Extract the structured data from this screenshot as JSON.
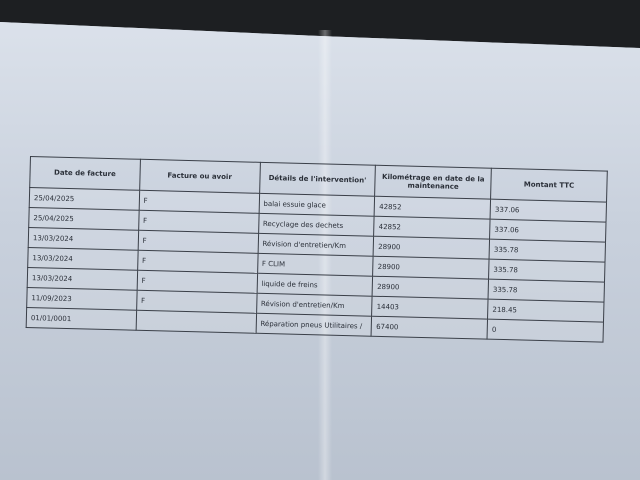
{
  "table": {
    "headers": [
      "Date de facture",
      "Facture ou avoir",
      "Détails de l'intervention'",
      "Kilométrage en date de la maintenance",
      "Montant TTC"
    ],
    "rows": [
      [
        "25/04/2025",
        "F",
        "balai essuie glace",
        "42852",
        "337.06"
      ],
      [
        "25/04/2025",
        "F",
        "Recyclage des dechets",
        "42852",
        "337.06"
      ],
      [
        "13/03/2024",
        "F",
        "Révision d'entretien/Km",
        "28900",
        "335.78"
      ],
      [
        "13/03/2024",
        "F",
        "F CLIM",
        "28900",
        "335.78"
      ],
      [
        "13/03/2024",
        "F",
        "liquide de freins",
        "28900",
        "335.78"
      ],
      [
        "11/09/2023",
        "F",
        "Révision d'entretien/Km",
        "14403",
        "218.45"
      ],
      [
        "01/01/0001",
        "",
        "Réparation pneus Utilitaires /",
        "67400",
        "0"
      ]
    ]
  }
}
